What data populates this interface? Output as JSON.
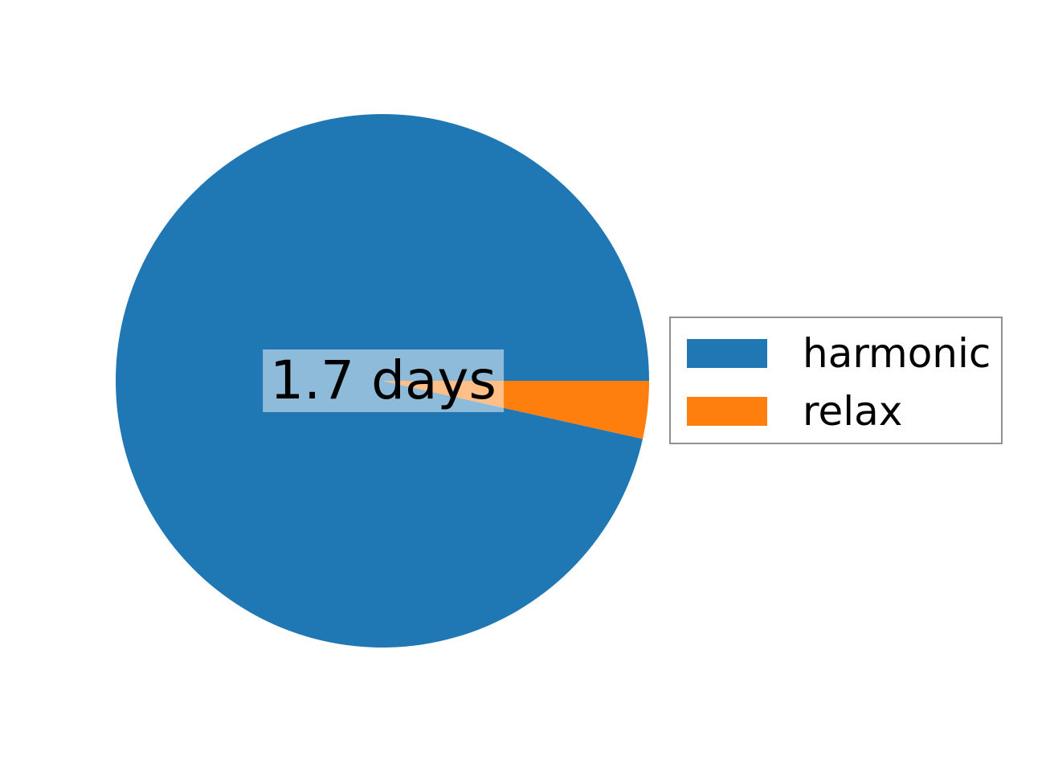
{
  "chart_data": {
    "type": "pie",
    "title": "",
    "center_label": "1.7 days",
    "start_angle_deg": 0,
    "counterclock": true,
    "legend_position": "right",
    "slices": [
      {
        "label": "harmonic",
        "value": 96.5,
        "color": "#1f77b4"
      },
      {
        "label": "relax",
        "value": 3.5,
        "color": "#ff7f0e"
      }
    ],
    "annotation_box": {
      "fill": "#ffffff",
      "alpha": 0.5
    }
  },
  "legend": {
    "border_color": "#909090",
    "entries": [
      {
        "label": "harmonic",
        "color": "#1f77b4"
      },
      {
        "label": "relax",
        "color": "#ff7f0e"
      }
    ]
  }
}
